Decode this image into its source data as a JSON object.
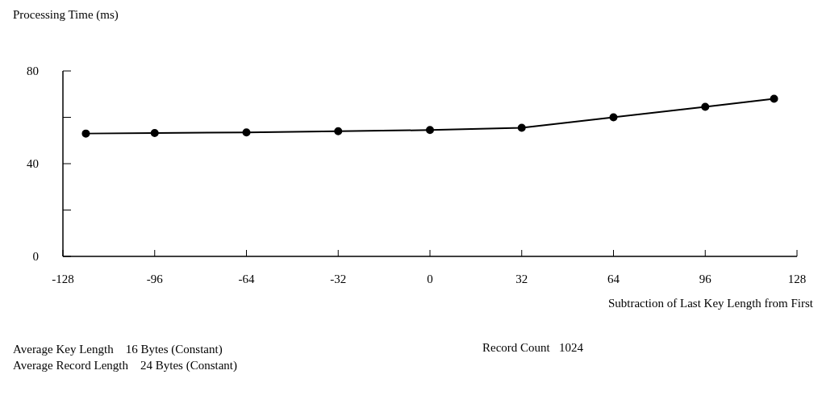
{
  "chart_data": {
    "type": "line",
    "ylabel": "Processing Time (ms)",
    "xlabel": "Subtraction of Last Key Length from First",
    "x": [
      -120,
      -96,
      -64,
      -32,
      0,
      32,
      64,
      96,
      120
    ],
    "series": [
      {
        "color": "#000000",
        "values": [
          53,
          53.2,
          53.5,
          54,
          54.5,
          55.5,
          60,
          64.5,
          68
        ]
      }
    ],
    "xlim": [
      -128,
      128
    ],
    "xticks": [
      -128,
      -96,
      -64,
      -32,
      0,
      32,
      64,
      96,
      128
    ],
    "ylim": [
      0,
      80
    ],
    "yticks": [
      0,
      {
        "value": 20,
        "label": null
      },
      40,
      {
        "value": 60,
        "label": null
      },
      80
    ],
    "marker": "circle",
    "line_style": "solid",
    "grid": false,
    "annotations": [
      "Average Key Length    16 Bytes (Constant)",
      "Average Record Length    24 Bytes (Constant)",
      "Record Count   1024"
    ]
  }
}
